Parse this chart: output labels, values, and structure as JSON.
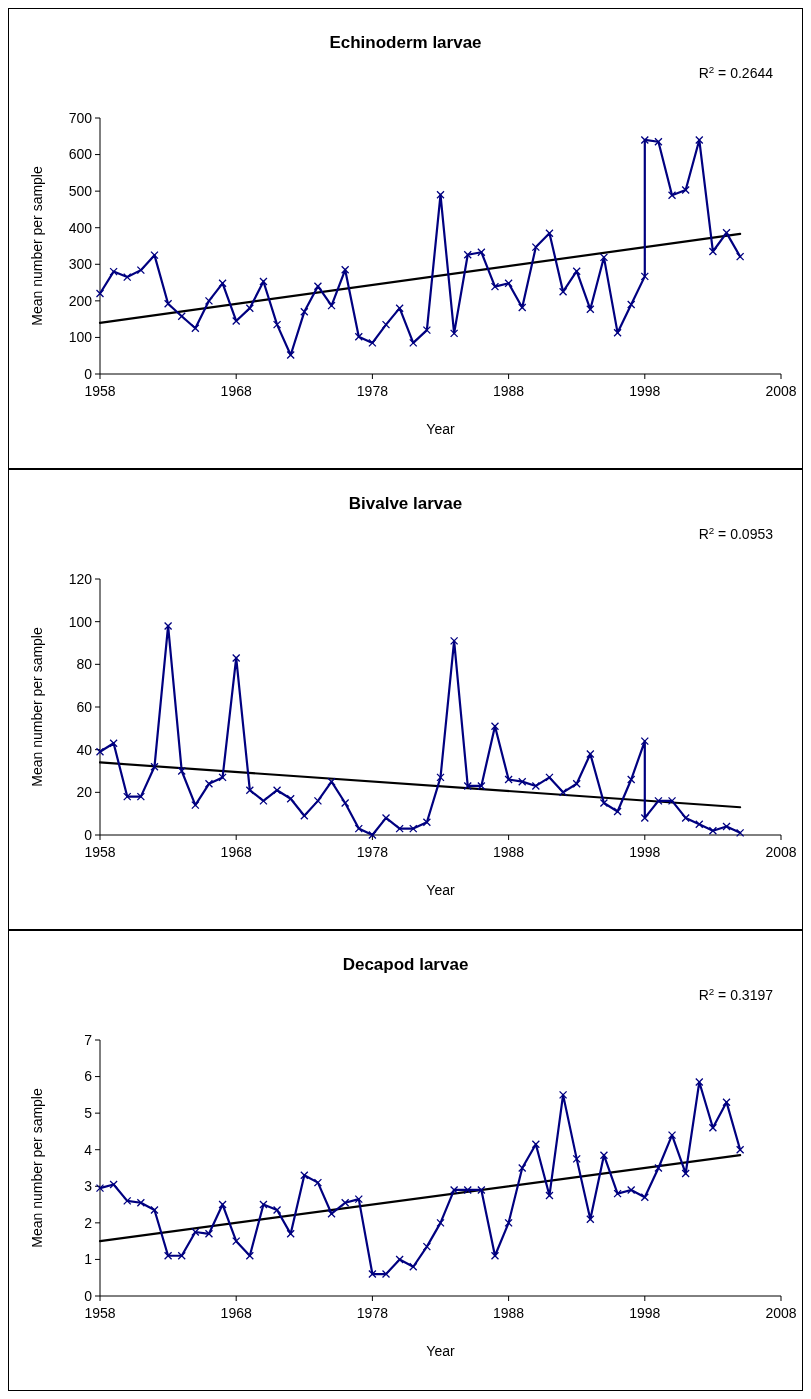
{
  "chart_data": [
    {
      "type": "line",
      "title": "Echinoderm larvae",
      "xlabel": "Year",
      "ylabel": "Mean number per sample",
      "annotations": [
        "R$^{2}$ = 0.2644"
      ],
      "xlim": [
        1958,
        2008
      ],
      "xticks": [
        1958,
        1968,
        1978,
        1988,
        1998,
        2008
      ],
      "ylim": [
        0,
        700
      ],
      "yticks": [
        0,
        100,
        200,
        300,
        400,
        500,
        600,
        700
      ],
      "grid": false,
      "series": [
        {
          "color": "#000080",
          "marker": "cross",
          "x": [
            1958,
            1959,
            1960,
            1961,
            1962,
            1963,
            1964,
            1965,
            1966,
            1967,
            1968,
            1969,
            1970,
            1971,
            1972,
            1973,
            1974,
            1975,
            1976,
            1977,
            1978,
            1979,
            1980,
            1981,
            1982,
            1983,
            1984,
            1985,
            1986,
            1987,
            1988,
            1989,
            1990,
            1991,
            1992,
            1993,
            1994,
            1995,
            1996,
            1997,
            1998,
            1998,
            1999,
            2000,
            2001,
            2002,
            2003,
            2004,
            2005
          ],
          "values": [
            220,
            280,
            265,
            284,
            325,
            192,
            158,
            125,
            200,
            248,
            145,
            180,
            253,
            135,
            52,
            170,
            240,
            187,
            285,
            102,
            85,
            135,
            180,
            85,
            120,
            490,
            111,
            326,
            333,
            239,
            248,
            182,
            347,
            385,
            225,
            281,
            177,
            319,
            113,
            190,
            267,
            640,
            635,
            489,
            503,
            640,
            335,
            386,
            321
          ]
        },
        {
          "color": "#000000",
          "marker": "none",
          "x": [
            1958,
            2005
          ],
          "values": [
            140,
            383
          ]
        }
      ]
    },
    {
      "type": "line",
      "title": "Bivalve larvae",
      "xlabel": "Year",
      "ylabel": "Mean number per sample",
      "annotations": [
        "R$^{2}$ = 0.0953"
      ],
      "xlim": [
        1958,
        2008
      ],
      "xticks": [
        1958,
        1968,
        1978,
        1988,
        1998,
        2008
      ],
      "ylim": [
        0,
        120
      ],
      "yticks": [
        0,
        20,
        40,
        60,
        80,
        100,
        120
      ],
      "grid": false,
      "series": [
        {
          "color": "#000080",
          "marker": "cross",
          "x": [
            1958,
            1959,
            1960,
            1961,
            1962,
            1963,
            1964,
            1965,
            1966,
            1967,
            1968,
            1969,
            1970,
            1971,
            1972,
            1973,
            1974,
            1975,
            1976,
            1977,
            1978,
            1979,
            1980,
            1981,
            1982,
            1983,
            1984,
            1985,
            1986,
            1987,
            1988,
            1989,
            1990,
            1991,
            1992,
            1993,
            1994,
            1995,
            1996,
            1997,
            1998,
            1998,
            1999,
            2000,
            2001,
            2002,
            2003,
            2004,
            2005
          ],
          "values": [
            39,
            43,
            18,
            18,
            32,
            98,
            30,
            14,
            24,
            27,
            83,
            21,
            16,
            21,
            17,
            9,
            16,
            25,
            15,
            3,
            0,
            8,
            3,
            3,
            6,
            27,
            91,
            23,
            23,
            51,
            26,
            25,
            23,
            27,
            20,
            24,
            38,
            15,
            11,
            26,
            44,
            8,
            16,
            16,
            8,
            5,
            2,
            4,
            1
          ]
        },
        {
          "color": "#000000",
          "marker": "none",
          "x": [
            1958,
            2005
          ],
          "values": [
            34,
            13
          ]
        }
      ]
    },
    {
      "type": "line",
      "title": "Decapod larvae",
      "xlabel": "Year",
      "ylabel": "Mean number per sample",
      "annotations": [
        "R$^{2}$ = 0.3197"
      ],
      "xlim": [
        1958,
        2008
      ],
      "xticks": [
        1958,
        1968,
        1978,
        1988,
        1998,
        2008
      ],
      "ylim": [
        0,
        7
      ],
      "yticks": [
        0,
        1,
        2,
        3,
        4,
        5,
        6,
        7
      ],
      "grid": false,
      "series": [
        {
          "color": "#000080",
          "marker": "cross",
          "x": [
            1958,
            1959,
            1960,
            1961,
            1962,
            1963,
            1964,
            1965,
            1966,
            1967,
            1968,
            1969,
            1970,
            1971,
            1972,
            1973,
            1974,
            1975,
            1976,
            1977,
            1978,
            1979,
            1980,
            1981,
            1982,
            1983,
            1984,
            1985,
            1986,
            1987,
            1988,
            1989,
            1990,
            1991,
            1992,
            1993,
            1994,
            1995,
            1996,
            1997,
            1998,
            1999,
            2000,
            2001,
            2002,
            2003,
            2004,
            2005
          ],
          "values": [
            2.95,
            3.05,
            2.6,
            2.55,
            2.35,
            1.1,
            1.1,
            1.75,
            1.7,
            2.5,
            1.5,
            1.1,
            2.5,
            2.35,
            1.7,
            3.3,
            3.1,
            2.25,
            2.55,
            2.65,
            0.6,
            0.6,
            1.0,
            0.8,
            1.35,
            2.0,
            2.9,
            2.9,
            2.9,
            1.1,
            2.0,
            3.5,
            4.15,
            2.75,
            5.5,
            3.75,
            2.1,
            3.85,
            2.8,
            2.9,
            2.7,
            3.5,
            4.4,
            3.35,
            5.85,
            4.6,
            5.3,
            4.0
          ]
        },
        {
          "color": "#000000",
          "marker": "none",
          "x": [
            1958,
            2005
          ],
          "values": [
            1.5,
            3.85
          ]
        }
      ]
    }
  ]
}
